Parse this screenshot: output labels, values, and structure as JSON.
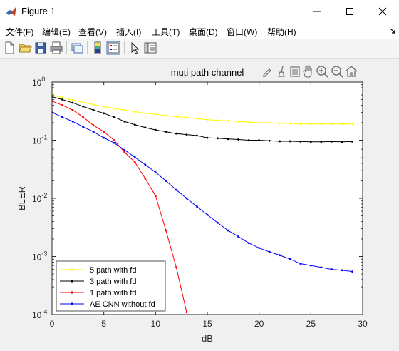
{
  "window": {
    "title": "Figure 1"
  },
  "menu": [
    {
      "label": "文件(F)"
    },
    {
      "label": "编辑(E)"
    },
    {
      "label": "查看(V)"
    },
    {
      "label": "插入(I)"
    },
    {
      "label": "工具(T)"
    },
    {
      "label": "桌面(D)"
    },
    {
      "label": "窗口(W)"
    },
    {
      "label": "帮助(H)"
    }
  ],
  "toolbar": {
    "buttons": [
      "new-figure-icon",
      "open-file-icon",
      "save-icon",
      "print-icon",
      "link-plot-icon",
      "insert-colorbar-icon",
      "insert-legend-icon",
      "pointer-icon",
      "property-inspector-icon"
    ]
  },
  "axes_toolbar": [
    "brush-icon",
    "data-tips-icon",
    "export-icon",
    "pan-icon",
    "zoom-in-icon",
    "zoom-out-icon",
    "home-icon"
  ],
  "colors": {
    "series_5path": "#ffff00",
    "series_3path": "#000000",
    "series_1path": "#ff0000",
    "series_ae": "#0000ff"
  },
  "chart_data": {
    "type": "line",
    "title": "muti path channel",
    "xlabel": "dB",
    "ylabel": "BLER",
    "xlim": [
      0,
      30
    ],
    "ylim_log10": [
      -4,
      0
    ],
    "yscale": "log",
    "grid": false,
    "legend_position": "bottom-left",
    "x_ticks": [
      "0",
      "5",
      "10",
      "15",
      "20",
      "25",
      "30"
    ],
    "y_ticks": [
      {
        "base": "10",
        "exp": "0"
      },
      {
        "base": "10",
        "exp": "-1"
      },
      {
        "base": "10",
        "exp": "-2"
      },
      {
        "base": "10",
        "exp": "-3"
      },
      {
        "base": "10",
        "exp": "-4"
      }
    ],
    "series": [
      {
        "name": "5 path with fd",
        "color": "#ffff00",
        "x": [
          0,
          1,
          2,
          3,
          4,
          5,
          6,
          7,
          8,
          9,
          10,
          11,
          12,
          13,
          14,
          15,
          16,
          17,
          18,
          19,
          20,
          21,
          22,
          23,
          24,
          25,
          26,
          27,
          28,
          29
        ],
        "y": [
          0.6,
          0.54,
          0.49,
          0.45,
          0.41,
          0.38,
          0.35,
          0.33,
          0.31,
          0.29,
          0.28,
          0.265,
          0.255,
          0.245,
          0.235,
          0.225,
          0.22,
          0.215,
          0.21,
          0.205,
          0.2,
          0.2,
          0.195,
          0.195,
          0.19,
          0.19,
          0.19,
          0.19,
          0.19,
          0.19
        ]
      },
      {
        "name": "3 path with fd",
        "color": "#000000",
        "x": [
          0,
          1,
          2,
          3,
          4,
          5,
          6,
          7,
          8,
          9,
          10,
          11,
          12,
          13,
          14,
          15,
          16,
          17,
          18,
          19,
          20,
          21,
          22,
          23,
          24,
          25,
          26,
          27,
          28,
          29
        ],
        "y": [
          0.56,
          0.5,
          0.44,
          0.38,
          0.33,
          0.29,
          0.25,
          0.21,
          0.185,
          0.165,
          0.15,
          0.14,
          0.13,
          0.125,
          0.12,
          0.11,
          0.108,
          0.105,
          0.103,
          0.1,
          0.1,
          0.098,
          0.096,
          0.096,
          0.095,
          0.094,
          0.094,
          0.095,
          0.094,
          0.095
        ]
      },
      {
        "name": "1 path with fd",
        "color": "#ff0000",
        "x": [
          0,
          1,
          2,
          3,
          4,
          5,
          6,
          7,
          8,
          9,
          10,
          11,
          12,
          13,
          13.5
        ],
        "y": [
          0.47,
          0.4,
          0.33,
          0.25,
          0.18,
          0.14,
          0.1,
          0.062,
          0.042,
          0.022,
          0.011,
          0.0028,
          0.00065,
          0.00011,
          5e-05
        ]
      },
      {
        "name": "AE CNN without fd",
        "color": "#0000ff",
        "x": [
          0,
          1,
          2,
          3,
          4,
          5,
          6,
          7,
          8,
          9,
          10,
          11,
          12,
          13,
          14,
          15,
          16,
          17,
          18,
          19,
          20,
          21,
          22,
          23,
          24,
          25,
          26,
          27,
          28,
          29
        ],
        "y": [
          0.3,
          0.25,
          0.21,
          0.17,
          0.14,
          0.11,
          0.09,
          0.068,
          0.051,
          0.038,
          0.028,
          0.02,
          0.014,
          0.01,
          0.0072,
          0.0052,
          0.0038,
          0.0028,
          0.0022,
          0.0017,
          0.0014,
          0.0012,
          0.00105,
          0.0009,
          0.00075,
          0.0007,
          0.00065,
          0.0006,
          0.00058,
          0.00055
        ]
      }
    ]
  }
}
